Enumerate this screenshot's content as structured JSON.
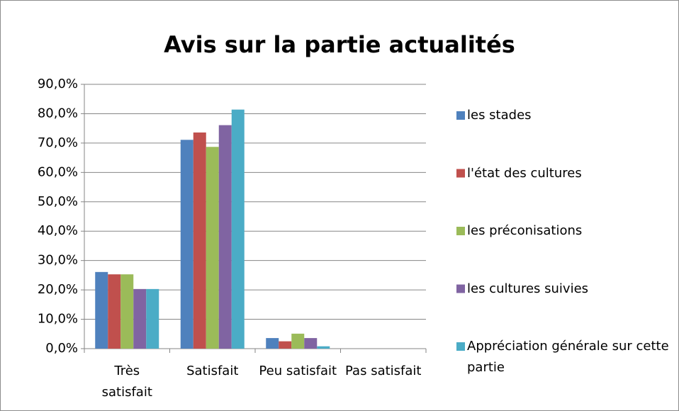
{
  "chart_data": {
    "type": "bar",
    "title": "Avis sur la partie actualités",
    "categories": [
      "Très satisfait",
      "Satisfait",
      "Peu satisfait",
      "Pas satisfait"
    ],
    "series": [
      {
        "name": "les stades",
        "color": "#4f81bd",
        "values": [
          26.1,
          71.1,
          3.6,
          0
        ]
      },
      {
        "name": "l'état des cultures",
        "color": "#c0504d",
        "values": [
          25.3,
          73.6,
          2.5,
          0
        ]
      },
      {
        "name": "les préconisations",
        "color": "#9bbb59",
        "values": [
          25.3,
          68.7,
          5.1,
          0
        ]
      },
      {
        "name": "les cultures suivies",
        "color": "#8064a2",
        "values": [
          20.3,
          76.1,
          3.6,
          0
        ]
      },
      {
        "name": "Appréciation générale sur cette partie",
        "color": "#4bacc6",
        "values": [
          20.3,
          81.4,
          0.8,
          0
        ]
      }
    ],
    "ylim": [
      0,
      90
    ],
    "yticks": [
      {
        "value": 0,
        "label": "0,0%"
      },
      {
        "value": 10,
        "label": "10,0%"
      },
      {
        "value": 20,
        "label": "20,0%"
      },
      {
        "value": 30,
        "label": "30,0%"
      },
      {
        "value": 40,
        "label": "40,0%"
      },
      {
        "value": 50,
        "label": "50,0%"
      },
      {
        "value": 60,
        "label": "60,0%"
      },
      {
        "value": 70,
        "label": "70,0%"
      },
      {
        "value": 80,
        "label": "80,0%"
      },
      {
        "value": 90,
        "label": "90,0%"
      }
    ],
    "grid": true,
    "legend": "right"
  }
}
